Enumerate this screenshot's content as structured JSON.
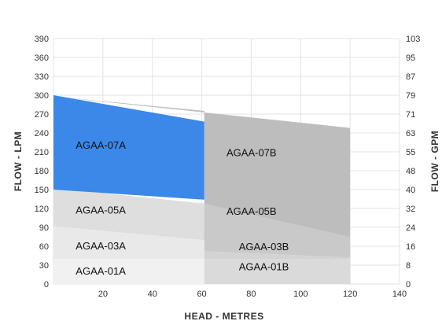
{
  "chart_data": {
    "type": "area",
    "xlabel": "HEAD - METRES",
    "ylabel": "FLOW - LPM",
    "y2label": "FLOW - GPM",
    "xlim": [
      0,
      140
    ],
    "ylim": [
      0,
      390
    ],
    "x_ticks": [
      20,
      40,
      60,
      80,
      100,
      120,
      140
    ],
    "y_ticks": [
      0,
      30,
      60,
      90,
      120,
      150,
      180,
      210,
      240,
      270,
      300,
      330,
      360,
      390
    ],
    "y2_ticks": [
      {
        "value": 0,
        "label": "0"
      },
      {
        "value": 30,
        "label": "8"
      },
      {
        "value": 60,
        "label": "16"
      },
      {
        "value": 90,
        "label": "24"
      },
      {
        "value": 120,
        "label": "32"
      },
      {
        "value": 150,
        "label": "40"
      },
      {
        "value": 180,
        "label": "48"
      },
      {
        "value": 210,
        "label": "55"
      },
      {
        "value": 240,
        "label": "63"
      },
      {
        "value": 270,
        "label": "71"
      },
      {
        "value": 300,
        "label": "79"
      },
      {
        "value": 330,
        "label": "87"
      },
      {
        "value": 360,
        "label": "95"
      },
      {
        "value": 390,
        "label": "103"
      }
    ],
    "grid": true,
    "regions": [
      {
        "name": "AGAA-07B",
        "color": "#bdbdbd",
        "points": [
          [
            0,
            298
          ],
          [
            120,
            248
          ],
          [
            120,
            75
          ],
          [
            61,
            70
          ],
          [
            61,
            275
          ]
        ],
        "label_at": [
          70,
          203
        ]
      },
      {
        "name": "AGAA-05B",
        "color": "#c9c9c9",
        "points": [
          [
            61,
            128
          ],
          [
            120,
            75
          ],
          [
            120,
            42
          ],
          [
            61,
            52
          ]
        ],
        "label_at": [
          70,
          110
        ]
      },
      {
        "name": "AGAA-03B",
        "color": "#d3d3d3",
        "points": [
          [
            61,
            52
          ],
          [
            120,
            42
          ],
          [
            120,
            0
          ],
          [
            61,
            0
          ]
        ],
        "label_at": [
          75,
          54
        ]
      },
      {
        "name": "AGAA-01B",
        "color": "#dadada",
        "points": [
          [
            61,
            40
          ],
          [
            120,
            40
          ],
          [
            120,
            0
          ],
          [
            61,
            0
          ]
        ],
        "label_at": [
          75,
          22
        ]
      },
      {
        "name": "AGAA-05A",
        "color": "#dedede",
        "points": [
          [
            0,
            152
          ],
          [
            61,
            128
          ],
          [
            61,
            52
          ],
          [
            0,
            92
          ]
        ],
        "label_at": [
          9,
          112
        ]
      },
      {
        "name": "AGAA-03A",
        "color": "#e9e9e9",
        "points": [
          [
            0,
            92
          ],
          [
            61,
            70
          ],
          [
            61,
            0
          ],
          [
            0,
            0
          ]
        ],
        "label_at": [
          9,
          55
        ]
      },
      {
        "name": "AGAA-01A",
        "color": "#f1f1f1",
        "points": [
          [
            0,
            40
          ],
          [
            61,
            40
          ],
          [
            61,
            0
          ],
          [
            0,
            0
          ]
        ],
        "label_at": [
          9,
          15
        ]
      },
      {
        "name": "AGAA-07A",
        "color": "#3b88e8",
        "label_color": "#ffffff",
        "points": [
          [
            0,
            300
          ],
          [
            61,
            258
          ],
          [
            61,
            134
          ],
          [
            0,
            150
          ]
        ],
        "label_at": [
          9,
          215
        ]
      }
    ]
  }
}
